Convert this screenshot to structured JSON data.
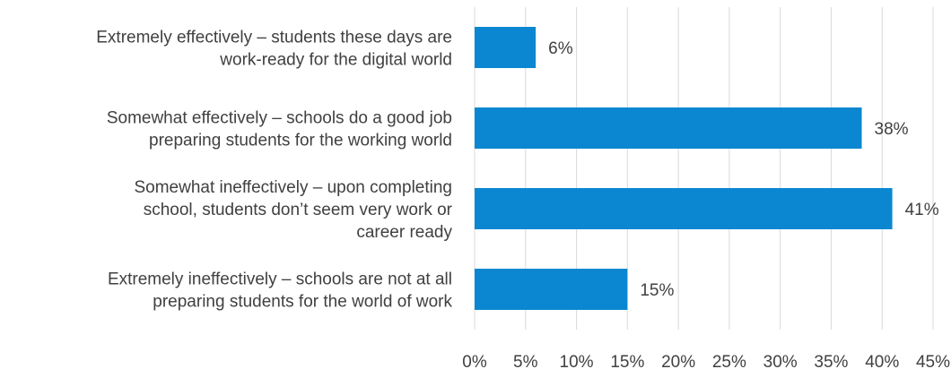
{
  "chart_data": {
    "type": "bar",
    "orientation": "horizontal",
    "categories": [
      "Extremely effectively – students these days are work-ready for the digital world",
      "Somewhat effectively – schools do a good job preparing students for the working world",
      "Somewhat ineffectively – upon completing school, students don’t seem very work or career ready",
      "Extremely ineffectively – schools are not at all preparing students for the world of work"
    ],
    "category_lines": [
      [
        "Extremely effectively – students these days are",
        "work-ready for the digital world"
      ],
      [
        "Somewhat effectively – schools do a good job",
        "preparing students for the working world"
      ],
      [
        "Somewhat ineffectively – upon completing",
        "school, students don’t seem very work or",
        "career ready"
      ],
      [
        "Extremely ineffectively – schools are not at all",
        "preparing students for the world of work"
      ]
    ],
    "values": [
      6,
      38,
      41,
      15
    ],
    "value_labels": [
      "6%",
      "38%",
      "41%",
      "15%"
    ],
    "xlim": [
      0,
      45
    ],
    "xticks": [
      0,
      5,
      10,
      15,
      20,
      25,
      30,
      35,
      40,
      45
    ],
    "xtick_labels": [
      "0%",
      "5%",
      "10%",
      "15%",
      "20%",
      "25%",
      "30%",
      "35%",
      "40%",
      "45%"
    ],
    "title": "",
    "xlabel": "",
    "ylabel": "",
    "grid": "vertical",
    "legend": "none",
    "colors": {
      "bar": "#0a87d0",
      "grid": "#d9d9d9",
      "text": "#404040"
    }
  }
}
